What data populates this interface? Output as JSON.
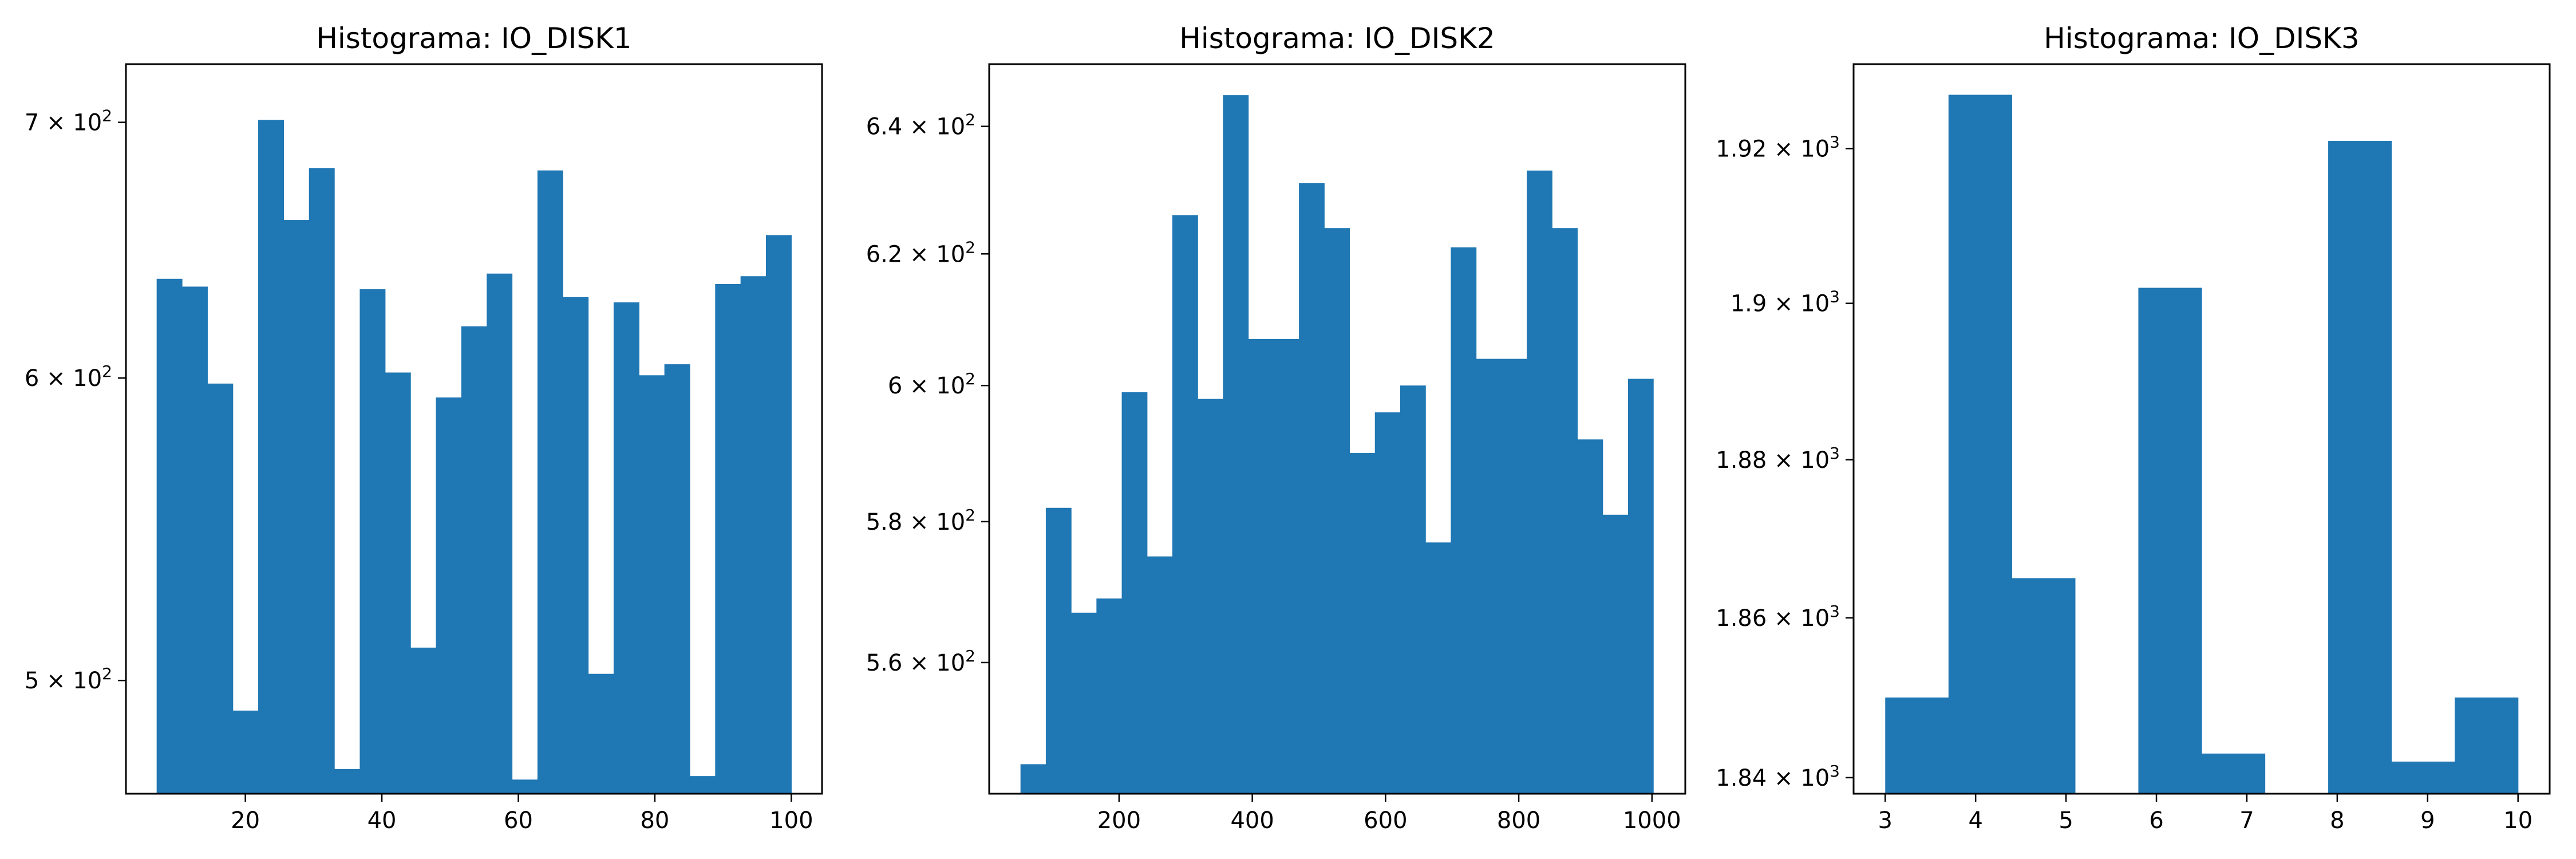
{
  "figure": {
    "bar_color": "#1f77b4",
    "background": "#ffffff"
  },
  "chart_data": [
    {
      "type": "bar",
      "subtype": "histogram",
      "title": "Histograma: IO_DISK1",
      "xlabel": "",
      "ylabel": "",
      "yscale": "log",
      "grid": false,
      "xlim": [
        2.5,
        104.5
      ],
      "ylim": [
        467,
        725
      ],
      "xticks": [
        20,
        40,
        60,
        80,
        100
      ],
      "yticks": [
        {
          "value": 500,
          "mantissa": "5",
          "exponent": "2"
        },
        {
          "value": 600,
          "mantissa": "6",
          "exponent": "2"
        },
        {
          "value": 700,
          "mantissa": "7",
          "exponent": "2"
        }
      ],
      "bin_edges": [
        7,
        10.72,
        14.44,
        18.16,
        21.88,
        25.6,
        29.32,
        33.04,
        36.76,
        40.48,
        44.2,
        47.92,
        51.64,
        55.36,
        59.08,
        62.8,
        66.52,
        70.24,
        73.96,
        77.68,
        81.4,
        85.12,
        88.84,
        92.56,
        96.28,
        100
      ],
      "values": [
        637,
        634,
        598,
        491,
        701,
        660,
        681,
        474,
        633,
        602,
        510,
        593,
        619,
        639,
        471,
        680,
        630,
        502,
        628,
        601,
        605,
        472,
        635,
        638,
        654
      ]
    },
    {
      "type": "bar",
      "subtype": "histogram",
      "title": "Histograma: IO_DISK2",
      "xlabel": "",
      "ylabel": "",
      "yscale": "log",
      "grid": false,
      "xlim": [
        5,
        1050
      ],
      "ylim": [
        542,
        650
      ],
      "xticks": [
        200,
        400,
        600,
        800,
        1000
      ],
      "yticks": [
        {
          "value": 560,
          "mantissa": "5.6",
          "exponent": "2"
        },
        {
          "value": 580,
          "mantissa": "5.8",
          "exponent": "2"
        },
        {
          "value": 600,
          "mantissa": "6",
          "exponent": "2"
        },
        {
          "value": 620,
          "mantissa": "6.2",
          "exponent": "2"
        },
        {
          "value": 640,
          "mantissa": "6.4",
          "exponent": "2"
        }
      ],
      "bin_edges": [
        52,
        90,
        128,
        166,
        204,
        242,
        280,
        318,
        356,
        394,
        432,
        470,
        508,
        546,
        584,
        622,
        660,
        698,
        736,
        774,
        812,
        850,
        888,
        926,
        964,
        1002
      ],
      "values": [
        546,
        582,
        567,
        569,
        599,
        575,
        626,
        598,
        645,
        607,
        607,
        631,
        624,
        590,
        596,
        600,
        577,
        621,
        604,
        604,
        633,
        624,
        592,
        581,
        601
      ]
    },
    {
      "type": "bar",
      "subtype": "histogram",
      "title": "Histograma: IO_DISK3",
      "xlabel": "",
      "ylabel": "",
      "yscale": "log",
      "grid": false,
      "xlim": [
        2.65,
        10.35
      ],
      "ylim": [
        1838,
        1931
      ],
      "xticks": [
        3,
        4,
        5,
        6,
        7,
        8,
        9,
        10
      ],
      "yticks": [
        {
          "value": 1840,
          "mantissa": "1.84",
          "exponent": "3"
        },
        {
          "value": 1860,
          "mantissa": "1.86",
          "exponent": "3"
        },
        {
          "value": 1880,
          "mantissa": "1.88",
          "exponent": "3"
        },
        {
          "value": 1900,
          "mantissa": "1.9",
          "exponent": "3"
        },
        {
          "value": 1920,
          "mantissa": "1.92",
          "exponent": "3"
        }
      ],
      "bin_edges": [
        3,
        3.7,
        4.4,
        5.1,
        5.8,
        6.5,
        7.2,
        7.9,
        8.6,
        9.3,
        10
      ],
      "values": [
        1850,
        1927,
        1865,
        0,
        1902,
        1843,
        0,
        1921,
        1842,
        1850
      ]
    }
  ]
}
